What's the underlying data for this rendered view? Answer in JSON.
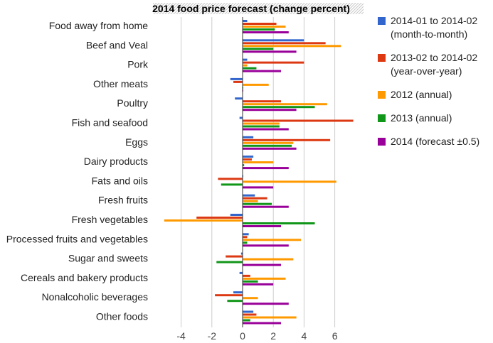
{
  "chart_data": {
    "type": "bar",
    "orientation": "horizontal",
    "title": "2014 food price forecast (change percent)",
    "xlabel": "",
    "ylabel": "",
    "xlim": [
      -5.2,
      7.2
    ],
    "xticks": [
      -4,
      -2,
      0,
      2,
      4,
      6
    ],
    "xtick_labels": [
      "-4",
      "-2",
      "0",
      "2",
      "4",
      "6"
    ],
    "grid": "vertical",
    "legend_position": "right",
    "categories": [
      "Food away from home",
      "Beef and Veal",
      "Pork",
      "Other meats",
      "Poultry",
      "Fish and seafood",
      "Eggs",
      "Dairy products",
      "Fats and oils",
      "Fresh fruits",
      "Fresh vegetables",
      "Processed fruits and vegetables",
      "Sugar and sweets",
      "Cereals and bakery products",
      "Nonalcoholic beverages",
      "Other foods"
    ],
    "series": [
      {
        "name": "2014-01 to 2014-02 (month-to-month)",
        "legend_lines": [
          "2014-01 to 2014-02",
          "(month-to-month)"
        ],
        "color": "#3366cc",
        "values": [
          0.3,
          4.0,
          0.3,
          -0.8,
          -0.5,
          -0.2,
          0.7,
          0.7,
          0.0,
          0.8,
          -0.8,
          0.4,
          -0.1,
          -0.2,
          -0.6,
          0.7
        ]
      },
      {
        "name": "2013-02 to 2014-02 (year-over-year)",
        "legend_lines": [
          "2013-02 to 2014-02",
          "(year-over-year)"
        ],
        "color": "#dc3912",
        "values": [
          2.2,
          5.4,
          4.0,
          -0.6,
          2.5,
          7.2,
          5.7,
          0.6,
          -1.6,
          1.6,
          -3.0,
          0.3,
          -1.1,
          0.5,
          -1.8,
          0.9
        ]
      },
      {
        "name": "2012 (annual)",
        "legend_lines": [
          "2012 (annual)"
        ],
        "color": "#ff9900",
        "values": [
          2.8,
          6.4,
          0.3,
          1.7,
          5.5,
          2.4,
          3.3,
          2.0,
          6.1,
          1.0,
          -5.1,
          3.8,
          3.3,
          2.8,
          1.0,
          3.5
        ]
      },
      {
        "name": "2013 (annual)",
        "legend_lines": [
          "2013 (annual)"
        ],
        "color": "#109618",
        "values": [
          2.1,
          2.0,
          0.9,
          0.0,
          4.7,
          2.4,
          3.2,
          0.1,
          -1.4,
          1.9,
          4.7,
          0.3,
          -1.7,
          1.0,
          -1.0,
          0.5
        ]
      },
      {
        "name": "2014 (forecast ±0.5)",
        "legend_lines": [
          "2014 (forecast ±0.5)"
        ],
        "color": "#990099",
        "values": [
          3.0,
          3.5,
          2.5,
          0.0,
          3.5,
          3.0,
          3.5,
          3.0,
          2.0,
          3.0,
          2.5,
          3.0,
          2.5,
          2.0,
          3.0,
          2.5
        ]
      }
    ]
  }
}
